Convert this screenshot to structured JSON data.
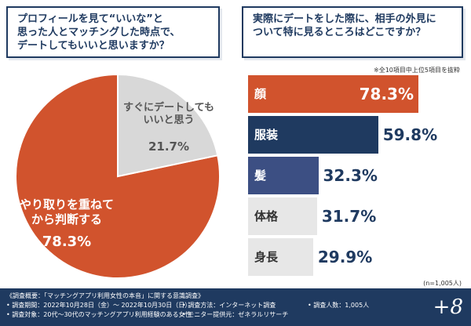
{
  "colors": {
    "accent_orange": "#d1532d",
    "navy": "#1f3a60",
    "indigo": "#3c4f83",
    "gray_bar": "#e7e7e7",
    "pie_gray": "#d8d8d8"
  },
  "question1": {
    "lines": [
      "プロフィールを見て“いいな”と",
      "思った人とマッチングした時点で、",
      "デートしてもいいと思いますか？"
    ]
  },
  "question2": {
    "lines": [
      "実際にデートをした際に、相手の外見に",
      "ついて特に見るところはどこですか？"
    ]
  },
  "note": "※全10項目中上位5項目を抜粋",
  "n_label": "(n=1,005人)",
  "chart_data": [
    {
      "type": "pie",
      "categories": [
        "やり取りを重ねてから判断する",
        "すぐにデートしてもいいと思う"
      ],
      "label_lines": [
        [
          "やり取りを重ねて",
          "から判断する"
        ],
        [
          "すぐにデートしても",
          "いいと思う"
        ]
      ],
      "values": [
        78.3,
        21.7
      ],
      "value_labels": [
        "78.3%",
        "21.7%"
      ],
      "colors": [
        "#d1532d",
        "#d8d8d8"
      ]
    },
    {
      "type": "bar",
      "orientation": "horizontal",
      "categories": [
        "顔",
        "服装",
        "髪",
        "体格",
        "身長"
      ],
      "values": [
        78.3,
        59.8,
        32.3,
        31.7,
        29.9
      ],
      "value_labels": [
        "78.3%",
        "59.8%",
        "32.3%",
        "31.7%",
        "29.9%"
      ],
      "colors": [
        "#d1532d",
        "#1f3a60",
        "#3c4f83",
        "#e7e7e7",
        "#e7e7e7"
      ],
      "xlim": [
        0,
        100
      ]
    }
  ],
  "footer": {
    "overview": "《調査概要：「マッチングアプリ利用女性の本音」に関する意識調査》",
    "period": "• 調査期間：2022年10月28日（金）～ 2022年10月30日（日）",
    "target": "• 調査対象：20代～30代のマッチングアプリ利用経験のある女性",
    "method": "• 調査方法：インターネット調査",
    "provider": "• モニター提供元：ゼネラルリサーチ",
    "count": "• 調査人数：1,005人",
    "logo": "+8"
  }
}
